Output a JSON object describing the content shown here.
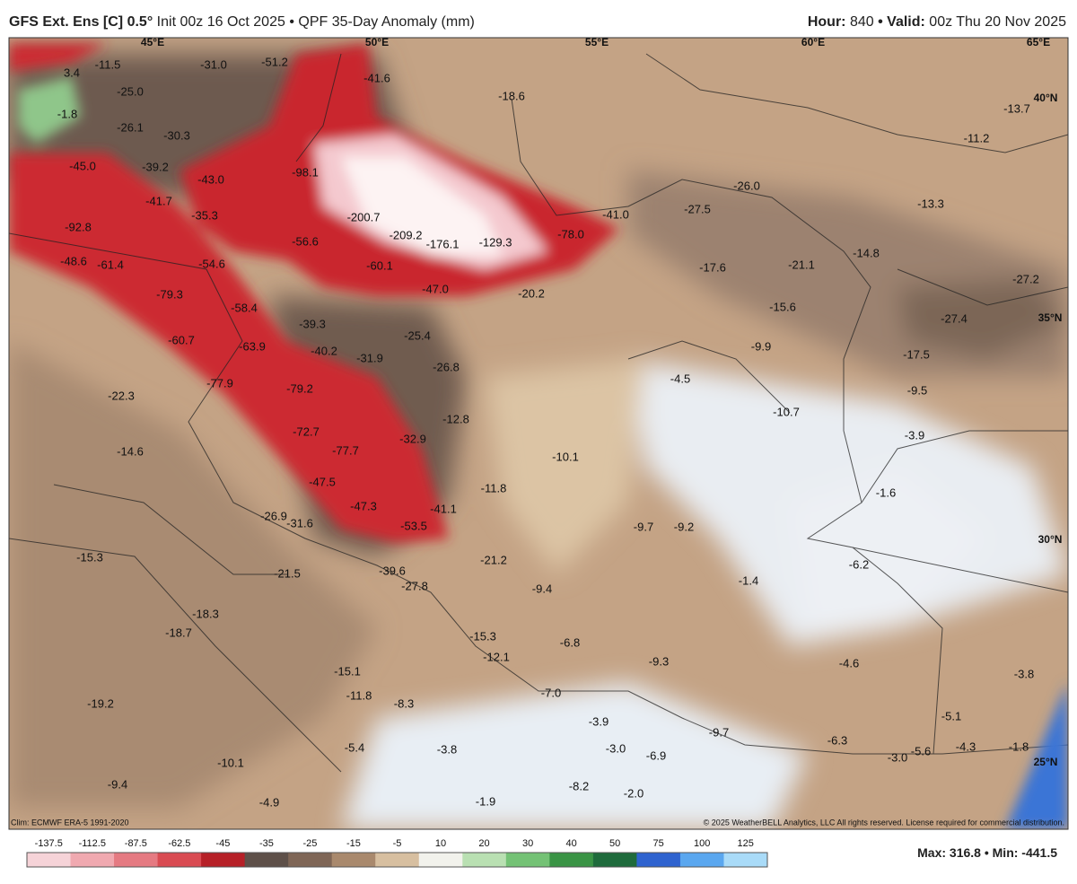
{
  "header": {
    "title": "GFS Ext. Ens [C] 0.5°",
    "subtitle": "Init 00z 16 Oct 2025 • QPF 35-Day Anomaly (mm)",
    "hour_label": "Hour:",
    "hour": "840",
    "valid_label": "• Valid:",
    "valid": "00z Thu 20 Nov 2025"
  },
  "map": {
    "longitude_labels": [
      "45°E",
      "50°E",
      "55°E",
      "60°E",
      "65°E"
    ],
    "latitude_labels": [
      "40°N",
      "35°N",
      "30°N",
      "25°N"
    ],
    "values": [
      "3.4",
      "-11.5",
      "-31.0",
      "-51.2",
      "-41.6",
      "-1.8",
      "-25.0",
      "-26.1",
      "-30.3",
      "-18.6",
      "-13.7",
      "-11.2",
      "-45.0",
      "-39.2",
      "-43.0",
      "-98.1",
      "-26.0",
      "-13.3",
      "-41.7",
      "-35.3",
      "-200.7",
      "-27.5",
      "-41.0",
      "-92.8",
      "-209.2",
      "-176.1",
      "-129.3",
      "-78.0",
      "-56.6",
      "-14.8",
      "-48.6",
      "-61.4",
      "-54.6",
      "-60.1",
      "-17.6",
      "-21.1",
      "-27.2",
      "-47.0",
      "-20.2",
      "-79.3",
      "-15.6",
      "-58.4",
      "-39.3",
      "-27.4",
      "-60.7",
      "-63.9",
      "-40.2",
      "-25.4",
      "-9.9",
      "-17.5",
      "-31.9",
      "-26.8",
      "-4.5",
      "-9.5",
      "-77.9",
      "-79.2",
      "-22.3",
      "-12.8",
      "-10.7",
      "-72.7",
      "-77.7",
      "-32.9",
      "-3.9",
      "-14.6",
      "-10.1",
      "-47.5",
      "-11.8",
      "-1.6",
      "-47.3",
      "-41.1",
      "-26.9",
      "-31.6",
      "-53.5",
      "-9.7",
      "-9.2",
      "-15.3",
      "-21.2",
      "-6.2",
      "-39.6",
      "-21.5",
      "-27.8",
      "-9.4",
      "-1.4",
      "-18.3",
      "-18.7",
      "-15.3",
      "-6.8",
      "-4.6",
      "-3.8",
      "-12.1",
      "-9.3",
      "-15.1",
      "-11.8",
      "-7.0",
      "-8.3",
      "-19.2",
      "-5.1",
      "-3.9",
      "-9.7",
      "-3.0",
      "-6.3",
      "-5.4",
      "-3.8",
      "-6.9",
      "-3.0",
      "-5.6",
      "-4.3",
      "-1.8",
      "-10.1",
      "-9.4",
      "-8.2",
      "-2.0",
      "-1.9",
      "-4.9"
    ],
    "climo": "Clim: ECMWF ERA-5 1991-2020",
    "copyright": "© 2025 WeatherBELL Analytics, LLC All rights reserved. License required for commercial distribution."
  },
  "colorbar": {
    "labels": [
      -137.5,
      -112.5,
      -87.5,
      -62.5,
      -45,
      -35,
      -25,
      -15,
      -5,
      10,
      20,
      30,
      40,
      50,
      75,
      100,
      125
    ],
    "colors": [
      "#f6d3d8",
      "#f0a9b0",
      "#e57a82",
      "#d94b52",
      "#b62027",
      "#5e5049",
      "#7f6656",
      "#a9896d",
      "#d7bfa0",
      "#f2f2ec",
      "#b9e0b2",
      "#74c275",
      "#3a9445",
      "#1f6b3c",
      "#2f63cf",
      "#5aa7ef",
      "#a9dbf8"
    ],
    "stats": "Max: 316.8 • Min: -441.5"
  }
}
